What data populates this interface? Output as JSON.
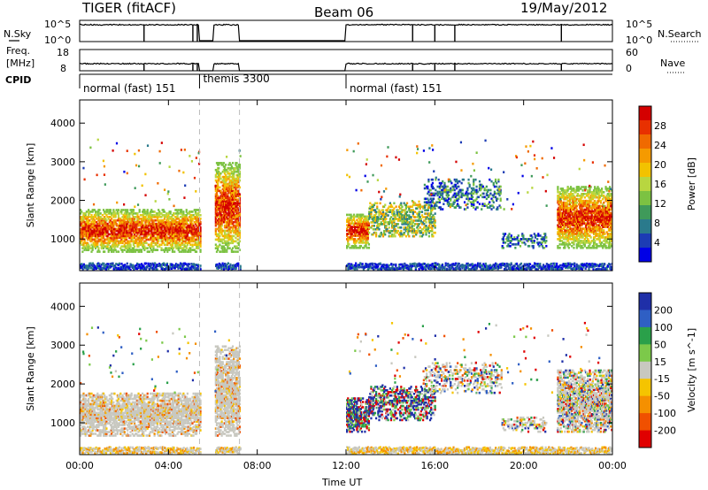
{
  "header": {
    "radar": "TIGER (fitACF)",
    "beam": "Beam 06",
    "date": "19/May/2012"
  },
  "top_panels": {
    "nsky_label": "N.Sky",
    "nsky_ticks": [
      "10^5",
      "10^0"
    ],
    "nsearch_label": "N.Search",
    "nsearch_ticks": [
      "10^5",
      "10^0"
    ],
    "freq_label_1": "Freq.",
    "freq_label_2": "[MHz]",
    "freq_ticks": [
      "18",
      "8"
    ],
    "nave_label": "Nave",
    "nave_ticks": [
      "60",
      "0"
    ],
    "cpid_label": "CPID",
    "cpid_segments": [
      {
        "label": "normal (fast) 151",
        "start_h": 0.0,
        "end_h": 5.4
      },
      {
        "label": "themis 3300",
        "start_h": 5.4,
        "end_h": 7.2
      },
      {
        "label": "normal (fast) 151",
        "start_h": 12.0,
        "end_h": 24.0
      }
    ]
  },
  "chart_data": [
    {
      "type": "heatmap",
      "name": "power",
      "ylabel": "Slant Range [km]",
      "xlabel": "Time UT",
      "xlim": [
        0,
        24
      ],
      "ylim": [
        180,
        4600
      ],
      "y_ticks": [
        "1000",
        "2000",
        "3000",
        "4000"
      ],
      "x_ticks": [
        "00:00",
        "04:00",
        "08:00",
        "12:00",
        "16:00",
        "20:00",
        "00:00"
      ],
      "colorbar": {
        "label": "Power [dB]",
        "ticks": [
          "4",
          "8",
          "12",
          "16",
          "20",
          "24",
          "28"
        ],
        "colors": [
          "#0000e6",
          "#1c3cb4",
          "#2a7a8c",
          "#3f9a5a",
          "#7cc242",
          "#b8d640",
          "#f2c200",
          "#f59a00",
          "#f06a00",
          "#e83000",
          "#d40000"
        ]
      },
      "data_gaps_h": [
        [
          5.4,
          6.05
        ],
        [
          7.2,
          12.0
        ]
      ],
      "scatter_regions": [
        {
          "t0": 0.0,
          "t1": 5.4,
          "r0": 700,
          "r1": 1800,
          "level": "high"
        },
        {
          "t0": 6.0,
          "t1": 7.2,
          "r0": 700,
          "r1": 3000,
          "level": "high"
        },
        {
          "t0": 12.0,
          "t1": 13.0,
          "r0": 800,
          "r1": 1700,
          "level": "high"
        },
        {
          "t0": 13.0,
          "t1": 16.0,
          "r0": 1100,
          "r1": 2000,
          "level": "mid"
        },
        {
          "t0": 15.5,
          "t1": 19.0,
          "r0": 1800,
          "r1": 2600,
          "level": "low"
        },
        {
          "t0": 19.0,
          "t1": 21.0,
          "r0": 800,
          "r1": 1200,
          "level": "low"
        },
        {
          "t0": 21.5,
          "t1": 24.0,
          "r0": 800,
          "r1": 2400,
          "level": "high"
        }
      ]
    },
    {
      "type": "heatmap",
      "name": "velocity",
      "ylabel": "Slant Range [km]",
      "xlabel": "Time UT",
      "xlim": [
        0,
        24
      ],
      "ylim": [
        180,
        4600
      ],
      "y_ticks": [
        "1000",
        "2000",
        "3000",
        "4000"
      ],
      "x_ticks": [
        "00:00",
        "04:00",
        "08:00",
        "12:00",
        "16:00",
        "20:00",
        "00:00"
      ],
      "colorbar": {
        "label": "Velocity [m s^-1]",
        "ticks": [
          "200",
          "100",
          "50",
          "15",
          "-15",
          "-50",
          "-100",
          "-200"
        ],
        "colors": [
          "#1f2fa8",
          "#2f5fc4",
          "#2aa04a",
          "#7cc94a",
          "#c8c8c0",
          "#f5c400",
          "#f59000",
          "#f05000",
          "#e00000"
        ]
      },
      "data_gaps_h": [
        [
          5.4,
          6.05
        ],
        [
          7.2,
          12.0
        ]
      ]
    }
  ],
  "x_axis_title": "Time UT"
}
